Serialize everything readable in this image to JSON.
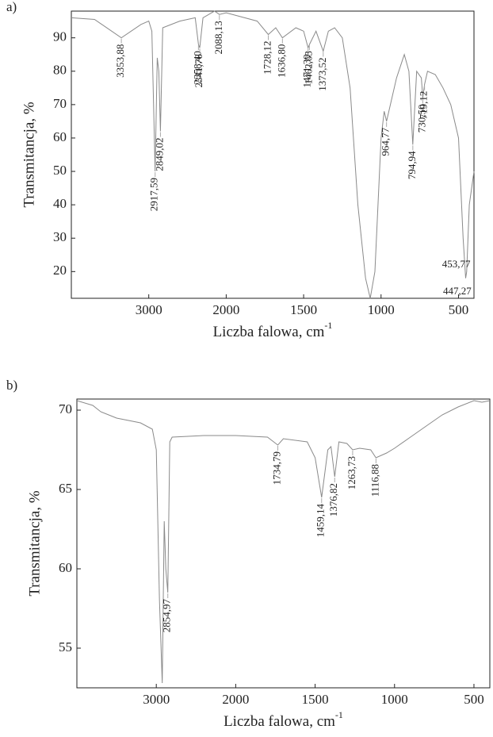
{
  "chart_data": [
    {
      "type": "line",
      "panel": "a)",
      "ylabel": "Transmitancja, %",
      "xlabel": "Liczba falowa, cm",
      "xlabel_sup": "-1",
      "xlim": [
        4000,
        400
      ],
      "xbreak": 2000,
      "xbreak_factor": 2,
      "xticks": [
        3000,
        2000,
        1500,
        1000,
        500
      ],
      "ylim": [
        12,
        98
      ],
      "yticks": [
        20,
        30,
        40,
        50,
        60,
        70,
        80,
        90
      ],
      "color": "#8a8a8a",
      "x": [
        4000,
        3700,
        3353.88,
        3100,
        3000,
        2960,
        2917.59,
        2890,
        2870,
        2849.02,
        2820,
        2600,
        2400,
        2358.4,
        2341.76,
        2300,
        2150,
        2088.13,
        2000,
        1800,
        1728.12,
        1680,
        1636.8,
        1550,
        1500,
        1471.39,
        1462.63,
        1420,
        1373.52,
        1340,
        1300,
        1250,
        1200,
        1150,
        1100,
        1070,
        1040,
        1000,
        980,
        964.77,
        900,
        850,
        820,
        794.94,
        770,
        740,
        730.5,
        719.12,
        700,
        650,
        600,
        550,
        500,
        470,
        453.77,
        447.27,
        430,
        400
      ],
      "values": [
        96,
        95.5,
        90,
        94,
        95,
        92,
        50,
        84,
        80,
        62,
        93,
        95,
        96,
        88,
        87,
        96,
        98,
        97,
        97.5,
        95,
        91,
        93,
        90,
        93,
        92,
        87,
        88,
        92,
        86,
        92,
        93,
        90,
        75,
        40,
        18,
        12,
        20,
        60,
        68,
        65,
        78,
        85,
        80,
        58,
        80,
        78,
        72,
        76,
        80,
        79,
        75,
        70,
        60,
        30,
        18,
        20,
        40,
        50
      ],
      "annotations": [
        {
          "x": 3353.88,
          "label": "3353,88"
        },
        {
          "x": 2917.59,
          "label": "2917,59"
        },
        {
          "x": 2849.02,
          "label": "2849,02"
        },
        {
          "x": 2358.4,
          "label": "2358,40"
        },
        {
          "x": 2341.76,
          "label": "2341,76"
        },
        {
          "x": 2088.13,
          "label": "2088,13"
        },
        {
          "x": 1728.12,
          "label": "1728,12"
        },
        {
          "x": 1636.8,
          "label": "1636,80"
        },
        {
          "x": 1471.39,
          "label": "1471,39"
        },
        {
          "x": 1462.63,
          "label": "1462,63"
        },
        {
          "x": 1373.52,
          "label": "1373,52"
        },
        {
          "x": 964.77,
          "label": "964,77"
        },
        {
          "x": 794.94,
          "label": "794,94"
        },
        {
          "x": 730.5,
          "label": "730,50"
        },
        {
          "x": 719.12,
          "label": "719,12"
        },
        {
          "x": 447.27,
          "label": "447,27"
        },
        {
          "x": 453.77,
          "label": "453,77"
        }
      ]
    },
    {
      "type": "line",
      "panel": "b)",
      "ylabel": "Transmitancja, %",
      "xlabel": "Liczba falowa, cm",
      "xlabel_sup": "-1",
      "xlim": [
        4000,
        400
      ],
      "xbreak": 2000,
      "xbreak_factor": 2,
      "xticks": [
        3000,
        2000,
        1500,
        1000,
        500
      ],
      "ylim": [
        52.5,
        70.7
      ],
      "yticks": [
        55,
        60,
        65,
        70
      ],
      "color": "#8a8a8a",
      "x": [
        4000,
        3800,
        3700,
        3500,
        3200,
        3050,
        3000,
        2960,
        2925,
        2900,
        2880,
        2854.97,
        2830,
        2800,
        2400,
        2000,
        1800,
        1734.79,
        1700,
        1550,
        1500,
        1459.14,
        1420,
        1400,
        1376.82,
        1350,
        1300,
        1263.73,
        1220,
        1150,
        1116.88,
        1050,
        1000,
        900,
        800,
        700,
        600,
        500,
        450,
        400
      ],
      "values": [
        70.6,
        70.3,
        69.9,
        69.5,
        69.2,
        68.8,
        67.5,
        58,
        52.8,
        63,
        60,
        58.5,
        68,
        68.3,
        68.4,
        68.4,
        68.3,
        67.8,
        68.2,
        68,
        67,
        64.5,
        67.5,
        67.7,
        65.8,
        68,
        67.9,
        67.5,
        67.6,
        67.5,
        67,
        67.3,
        67.6,
        68.3,
        69,
        69.7,
        70.2,
        70.6,
        70.5,
        70.6
      ],
      "annotations": [
        {
          "x": 2854.97,
          "label": "2854,97"
        },
        {
          "x": 1734.79,
          "label": "1734,79"
        },
        {
          "x": 1459.14,
          "label": "1459,14"
        },
        {
          "x": 1376.82,
          "label": "1376,82"
        },
        {
          "x": 1263.73,
          "label": "1263,73"
        },
        {
          "x": 1116.88,
          "label": "1116,88"
        }
      ]
    }
  ]
}
